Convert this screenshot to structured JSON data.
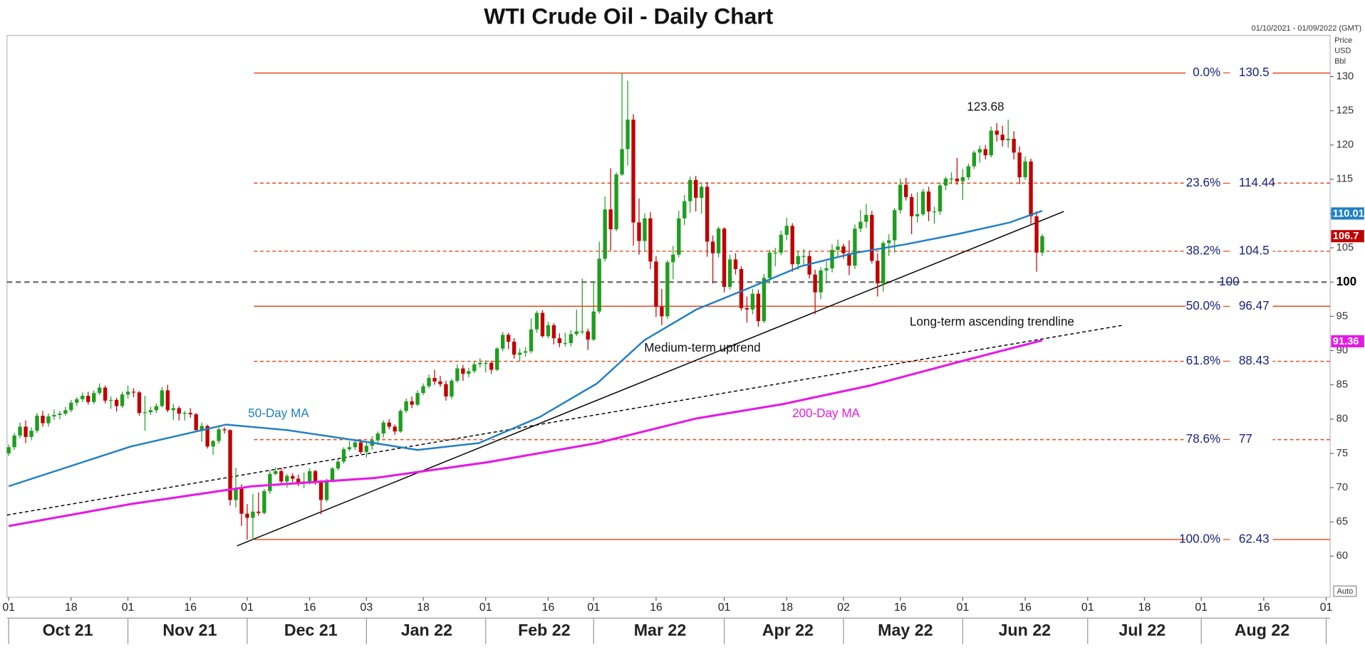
{
  "chart_data": {
    "type": "candlestick",
    "title": "WTI Crude Oil - Daily Chart",
    "date_range": "01/10/2021 - 01/09/2022 (GMT)",
    "unit_label": [
      "Price",
      "USD",
      "Bbl"
    ],
    "scale_mode": "Auto",
    "up_color": "#1e9e1e",
    "down_color": "#c00000",
    "xlim": [
      -0.3,
      232.7
    ],
    "ylim": [
      54,
      136
    ],
    "yticks": [
      60,
      65,
      70,
      75,
      80,
      85,
      90,
      95,
      100,
      105,
      110,
      115,
      120,
      125,
      130
    ],
    "xticks": [
      {
        "value": 0,
        "label": "01"
      },
      {
        "value": 11,
        "label": "18"
      },
      {
        "value": 21,
        "label": "01"
      },
      {
        "value": 32,
        "label": "16"
      },
      {
        "value": 42,
        "label": "01"
      },
      {
        "value": 53,
        "label": "16"
      },
      {
        "value": 63,
        "label": "03"
      },
      {
        "value": 73,
        "label": "18"
      },
      {
        "value": 84,
        "label": "01"
      },
      {
        "value": 95,
        "label": "16"
      },
      {
        "value": 103,
        "label": "01"
      },
      {
        "value": 114,
        "label": "16"
      },
      {
        "value": 126,
        "label": "01"
      },
      {
        "value": 137,
        "label": "18"
      },
      {
        "value": 147,
        "label": "02"
      },
      {
        "value": 157,
        "label": "16"
      },
      {
        "value": 168,
        "label": "01"
      },
      {
        "value": 179,
        "label": "16"
      },
      {
        "value": 190,
        "label": "01"
      },
      {
        "value": 200,
        "label": "18"
      },
      {
        "value": 210,
        "label": "01"
      },
      {
        "value": 221,
        "label": "16"
      },
      {
        "value": 232,
        "label": "01"
      }
    ],
    "month_labels": [
      {
        "value": 10.4,
        "label": "Oct 21"
      },
      {
        "value": 31.9,
        "label": "Nov 21"
      },
      {
        "value": 53.2,
        "label": "Dec 21"
      },
      {
        "value": 73.6,
        "label": "Jan 22"
      },
      {
        "value": 94.3,
        "label": "Feb 22"
      },
      {
        "value": 114.7,
        "label": "Mar 22"
      },
      {
        "value": 137.2,
        "label": "Apr 22"
      },
      {
        "value": 157.9,
        "label": "May 22"
      },
      {
        "value": 178.9,
        "label": "Jun 22"
      },
      {
        "value": 199.6,
        "label": "Jul 22"
      },
      {
        "value": 220.7,
        "label": "Aug 22"
      }
    ],
    "ohlc": [
      [
        75.0,
        76.3,
        74.6,
        75.9
      ],
      [
        75.9,
        78.0,
        75.5,
        77.6
      ],
      [
        77.6,
        79.5,
        77.2,
        78.9
      ],
      [
        78.9,
        79.8,
        76.5,
        77.4
      ],
      [
        77.4,
        78.8,
        76.9,
        78.3
      ],
      [
        78.3,
        80.9,
        78.0,
        80.5
      ],
      [
        80.5,
        81.2,
        78.9,
        79.4
      ],
      [
        79.4,
        80.8,
        78.9,
        80.4
      ],
      [
        80.4,
        81.4,
        79.9,
        80.6
      ],
      [
        80.6,
        81.2,
        80.0,
        80.8
      ],
      [
        80.8,
        81.8,
        80.5,
        81.3
      ],
      [
        81.3,
        82.8,
        81.0,
        82.4
      ],
      [
        82.4,
        83.2,
        81.9,
        82.9
      ],
      [
        82.9,
        83.9,
        82.5,
        83.4
      ],
      [
        83.4,
        84.0,
        82.1,
        82.5
      ],
      [
        82.5,
        84.2,
        82.2,
        83.8
      ],
      [
        83.8,
        85.2,
        83.5,
        84.6
      ],
      [
        84.6,
        84.9,
        82.3,
        82.7
      ],
      [
        82.7,
        83.3,
        81.5,
        82.8
      ],
      [
        82.8,
        83.1,
        81.1,
        81.9
      ],
      [
        81.9,
        84.0,
        81.6,
        83.6
      ],
      [
        83.6,
        84.9,
        83.0,
        84.0
      ],
      [
        84.0,
        84.5,
        83.2,
        83.9
      ],
      [
        83.9,
        84.1,
        80.5,
        80.9
      ],
      [
        80.9,
        83.4,
        78.3,
        81.0
      ],
      [
        81.0,
        81.8,
        80.6,
        81.3
      ],
      [
        81.3,
        82.3,
        80.9,
        81.9
      ],
      [
        81.9,
        84.7,
        81.7,
        84.2
      ],
      [
        84.2,
        85.0,
        81.0,
        81.3
      ],
      [
        81.3,
        82.2,
        79.9,
        81.6
      ],
      [
        81.6,
        81.9,
        79.8,
        80.8
      ],
      [
        80.8,
        81.2,
        79.8,
        80.9
      ],
      [
        80.9,
        81.6,
        80.2,
        80.7
      ],
      [
        80.7,
        80.9,
        78.2,
        78.4
      ],
      [
        78.4,
        79.5,
        76.7,
        79.0
      ],
      [
        79.0,
        79.2,
        75.7,
        76.0
      ],
      [
        76.0,
        77.0,
        74.8,
        76.8
      ],
      [
        76.8,
        78.9,
        76.4,
        78.5
      ],
      [
        78.5,
        78.8,
        77.9,
        78.4
      ],
      [
        78.4,
        78.5,
        67.4,
        68.2
      ],
      [
        68.2,
        72.9,
        67.1,
        69.9
      ],
      [
        69.9,
        70.5,
        64.4,
        66.2
      ],
      [
        66.2,
        67.6,
        62.4,
        65.6
      ],
      [
        65.6,
        69.1,
        62.4,
        66.5
      ],
      [
        66.5,
        69.3,
        65.9,
        66.3
      ],
      [
        66.3,
        69.8,
        66.1,
        69.5
      ],
      [
        69.5,
        72.5,
        69.1,
        72.0
      ],
      [
        72.0,
        73.0,
        71.8,
        72.4
      ],
      [
        72.4,
        72.9,
        70.4,
        70.9
      ],
      [
        70.9,
        72.0,
        70.0,
        71.7
      ],
      [
        71.7,
        72.1,
        70.8,
        71.3
      ],
      [
        71.3,
        71.9,
        70.2,
        70.7
      ],
      [
        70.7,
        72.2,
        69.9,
        70.9
      ],
      [
        70.9,
        72.8,
        70.5,
        72.4
      ],
      [
        72.4,
        72.6,
        70.4,
        70.9
      ],
      [
        70.9,
        71.1,
        66.1,
        68.2
      ],
      [
        68.2,
        71.3,
        67.9,
        71.1
      ],
      [
        71.1,
        73.0,
        70.8,
        72.8
      ],
      [
        72.8,
        74.1,
        72.5,
        73.8
      ],
      [
        73.8,
        75.9,
        73.5,
        75.6
      ],
      [
        75.6,
        76.8,
        75.3,
        75.9
      ],
      [
        75.9,
        77.1,
        75.5,
        76.6
      ],
      [
        76.6,
        77.0,
        74.9,
        75.2
      ],
      [
        75.2,
        76.6,
        74.4,
        76.1
      ],
      [
        76.1,
        77.5,
        75.5,
        76.9
      ],
      [
        76.9,
        78.2,
        76.5,
        77.9
      ],
      [
        77.9,
        79.8,
        77.3,
        79.5
      ],
      [
        79.5,
        80.0,
        78.5,
        78.9
      ],
      [
        78.9,
        79.2,
        77.7,
        78.2
      ],
      [
        78.2,
        81.5,
        78.0,
        81.2
      ],
      [
        81.2,
        83.0,
        80.9,
        82.6
      ],
      [
        82.6,
        83.3,
        81.6,
        82.1
      ],
      [
        82.1,
        84.2,
        81.9,
        83.8
      ],
      [
        83.8,
        85.2,
        83.5,
        84.8
      ],
      [
        84.8,
        86.5,
        84.5,
        86.0
      ],
      [
        86.0,
        87.2,
        85.0,
        85.5
      ],
      [
        85.5,
        86.3,
        84.7,
        85.1
      ],
      [
        85.1,
        85.6,
        82.7,
        83.3
      ],
      [
        83.3,
        85.9,
        82.9,
        85.6
      ],
      [
        85.6,
        88.0,
        85.3,
        87.4
      ],
      [
        87.4,
        87.9,
        85.6,
        86.6
      ],
      [
        86.6,
        87.5,
        86.1,
        87.0
      ],
      [
        87.0,
        88.4,
        86.7,
        88.0
      ],
      [
        88.0,
        88.9,
        87.5,
        88.2
      ],
      [
        88.2,
        88.6,
        86.8,
        88.2
      ],
      [
        88.2,
        88.5,
        86.6,
        87.2
      ],
      [
        87.2,
        90.5,
        87.0,
        90.3
      ],
      [
        90.3,
        92.7,
        89.9,
        92.3
      ],
      [
        92.3,
        92.6,
        90.2,
        91.3
      ],
      [
        91.3,
        91.8,
        88.8,
        89.4
      ],
      [
        89.4,
        90.3,
        88.4,
        89.7
      ],
      [
        89.7,
        90.5,
        89.1,
        89.9
      ],
      [
        89.9,
        94.7,
        89.6,
        93.1
      ],
      [
        93.1,
        95.8,
        92.6,
        95.5
      ],
      [
        95.5,
        95.9,
        91.9,
        92.1
      ],
      [
        92.1,
        94.2,
        91.8,
        93.7
      ],
      [
        93.7,
        94.0,
        90.9,
        91.8
      ],
      [
        91.8,
        92.5,
        90.5,
        91.1
      ],
      [
        91.1,
        92.6,
        90.6,
        91.1
      ],
      [
        91.1,
        93.0,
        90.6,
        92.4
      ],
      [
        92.4,
        96.0,
        92.1,
        92.8
      ],
      [
        92.8,
        100.5,
        92.4,
        92.8
      ],
      [
        92.8,
        93.2,
        90.1,
        91.6
      ],
      [
        91.6,
        100.0,
        91.4,
        95.7
      ],
      [
        95.7,
        105.9,
        95.4,
        103.4
      ],
      [
        103.4,
        112.5,
        103.0,
        110.6
      ],
      [
        110.6,
        116.6,
        104.6,
        107.7
      ],
      [
        107.7,
        116.0,
        107.4,
        115.7
      ],
      [
        115.7,
        130.5,
        115.5,
        119.4
      ],
      [
        119.4,
        129.4,
        117.0,
        123.7
      ],
      [
        123.7,
        124.5,
        105.3,
        108.7
      ],
      [
        108.7,
        112.2,
        104.0,
        106.0
      ],
      [
        106.0,
        110.0,
        104.5,
        109.3
      ],
      [
        109.3,
        110.2,
        101.9,
        103.0
      ],
      [
        103.0,
        103.8,
        94.9,
        96.4
      ],
      [
        96.4,
        99.0,
        93.7,
        95.0
      ],
      [
        95.0,
        103.2,
        94.6,
        102.9
      ],
      [
        102.9,
        105.3,
        100.4,
        104.0
      ],
      [
        104.0,
        110.4,
        103.6,
        109.3
      ],
      [
        109.3,
        112.7,
        108.3,
        111.8
      ],
      [
        111.8,
        115.4,
        110.1,
        114.9
      ],
      [
        114.9,
        115.5,
        110.3,
        112.3
      ],
      [
        112.3,
        114.3,
        110.0,
        113.9
      ],
      [
        113.9,
        114.6,
        103.7,
        105.9
      ],
      [
        105.9,
        106.8,
        99.8,
        104.2
      ],
      [
        104.2,
        108.1,
        103.6,
        107.8
      ],
      [
        107.8,
        108.0,
        98.5,
        99.3
      ],
      [
        99.3,
        104.0,
        98.9,
        103.3
      ],
      [
        103.3,
        104.2,
        101.1,
        101.9
      ],
      [
        101.9,
        102.3,
        95.8,
        96.2
      ],
      [
        96.2,
        97.9,
        94.1,
        96.0
      ],
      [
        96.0,
        99.0,
        95.3,
        98.3
      ],
      [
        98.3,
        98.9,
        93.5,
        94.3
      ],
      [
        94.3,
        101.2,
        94.0,
        100.6
      ],
      [
        100.6,
        104.7,
        99.8,
        104.3
      ],
      [
        104.3,
        105.0,
        102.3,
        104.3
      ],
      [
        104.3,
        107.5,
        103.9,
        106.9
      ],
      [
        106.9,
        109.4,
        106.1,
        108.2
      ],
      [
        108.2,
        108.6,
        101.5,
        102.6
      ],
      [
        102.6,
        104.5,
        101.8,
        103.8
      ],
      [
        103.8,
        104.8,
        102.3,
        103.8
      ],
      [
        103.8,
        104.5,
        100.5,
        101.1
      ],
      [
        101.1,
        101.8,
        95.3,
        98.5
      ],
      [
        98.5,
        102.2,
        97.5,
        101.7
      ],
      [
        101.7,
        103.0,
        99.8,
        102.0
      ],
      [
        102.0,
        105.5,
        101.4,
        104.7
      ],
      [
        104.7,
        106.2,
        103.8,
        105.2
      ],
      [
        105.2,
        105.6,
        103.4,
        104.2
      ],
      [
        104.2,
        106.1,
        101.0,
        102.4
      ],
      [
        102.4,
        108.4,
        101.9,
        107.8
      ],
      [
        107.8,
        110.5,
        107.3,
        108.8
      ],
      [
        108.8,
        111.4,
        107.9,
        109.8
      ],
      [
        109.8,
        110.4,
        102.7,
        103.1
      ],
      [
        103.1,
        104.2,
        97.9,
        99.8
      ],
      [
        99.8,
        106.0,
        98.6,
        105.7
      ],
      [
        105.7,
        107.0,
        103.8,
        106.1
      ],
      [
        106.1,
        110.8,
        104.3,
        110.5
      ],
      [
        110.5,
        115.1,
        110.0,
        114.2
      ],
      [
        114.2,
        115.2,
        111.9,
        112.4
      ],
      [
        112.4,
        112.9,
        107.0,
        109.6
      ],
      [
        109.6,
        113.1,
        108.7,
        109.9
      ],
      [
        109.9,
        113.6,
        109.6,
        113.2
      ],
      [
        113.2,
        113.9,
        108.9,
        110.3
      ],
      [
        110.3,
        111.0,
        108.5,
        110.3
      ],
      [
        110.3,
        114.5,
        109.8,
        114.1
      ],
      [
        114.1,
        115.4,
        113.4,
        115.1
      ],
      [
        115.1,
        116.0,
        114.3,
        115.1
      ],
      [
        115.1,
        118.1,
        114.2,
        114.7
      ],
      [
        114.7,
        116.5,
        112.0,
        115.3
      ],
      [
        115.3,
        117.3,
        114.9,
        116.9
      ],
      [
        116.9,
        119.2,
        116.5,
        118.9
      ],
      [
        118.9,
        119.9,
        117.4,
        119.4
      ],
      [
        119.4,
        120.0,
        117.9,
        118.5
      ],
      [
        118.5,
        122.7,
        118.2,
        122.1
      ],
      [
        122.1,
        123.2,
        120.5,
        121.5
      ],
      [
        121.5,
        122.8,
        119.8,
        120.7
      ],
      [
        120.7,
        123.7,
        119.6,
        120.9
      ],
      [
        120.9,
        122.0,
        117.9,
        118.9
      ],
      [
        118.9,
        119.8,
        114.3,
        115.3
      ],
      [
        115.3,
        118.3,
        114.9,
        117.6
      ],
      [
        117.6,
        118.0,
        108.5,
        109.6
      ],
      [
        109.6,
        110.3,
        101.5,
        104.3
      ],
      [
        104.3,
        107.0,
        103.8,
        106.7
      ]
    ],
    "series": [
      {
        "name": "50-Day MA",
        "color": "#1f7fc4",
        "x": [
          0,
          21.5,
          38.3,
          49,
          64.4,
          72,
          82.8,
          93.5,
          103.6,
          111.9,
          121.1,
          130.3,
          139.5,
          148.7,
          157.9,
          167.1,
          176.3,
          182
        ],
        "values": [
          70.2,
          76,
          79.2,
          78.4,
          76.5,
          75.5,
          76.5,
          80.3,
          85.2,
          91.5,
          96,
          99.1,
          102.3,
          104.2,
          105.5,
          107,
          108.7,
          110.4
        ]
      },
      {
        "name": "200-Day MA",
        "color": "#e619e6",
        "x": [
          0,
          21.5,
          42.9,
          64.4,
          84.3,
          103.6,
          121.1,
          136.4,
          151.7,
          167.1,
          182
        ],
        "values": [
          64.4,
          67.6,
          70.2,
          71.4,
          73.7,
          76.5,
          80.1,
          82.2,
          84.9,
          88.3,
          91.5
        ]
      }
    ],
    "trendlines": [
      {
        "label": "Medium-term uptrend",
        "style": "solid",
        "x": [
          40.2,
          185.8
        ],
        "values": [
          61.5,
          110.3
        ]
      },
      {
        "label": "Long-term ascending trendline",
        "style": "dashed",
        "x": [
          -0.3,
          196.2
        ],
        "values": [
          66,
          93.7
        ]
      }
    ],
    "fib_start": 43.2,
    "fib_color": "#e8491d",
    "fib_levels": [
      {
        "ratio": "0.0%",
        "value": 130.5,
        "style": "solid"
      },
      {
        "ratio": "23.6%",
        "value": 114.44,
        "style": "dashed"
      },
      {
        "ratio": "38.2%",
        "value": 104.5,
        "style": "dashed"
      },
      {
        "ratio": "50.0%",
        "value": 96.47,
        "style": "solid"
      },
      {
        "ratio": "61.8%",
        "value": 88.43,
        "style": "dashed"
      },
      {
        "ratio": "78.6%",
        "value": 77,
        "style": "dashed"
      },
      {
        "ratio": "100.0%",
        "value": 62.43,
        "style": "solid"
      }
    ],
    "reference_line": 100,
    "peak_label": {
      "x": 176,
      "value": 123.68
    },
    "price_tags": [
      {
        "value": 110.01,
        "color": "#1f7fc4"
      },
      {
        "value": 106.7,
        "color": "#c00000"
      },
      {
        "value": 91.36,
        "color": "#e619e6"
      }
    ]
  }
}
